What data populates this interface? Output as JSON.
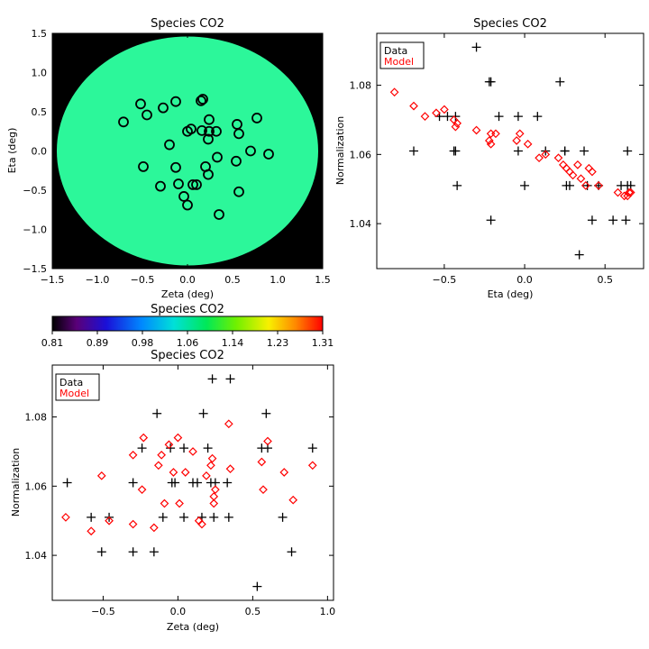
{
  "chart_data": [
    {
      "id": "map",
      "type": "heatmap",
      "title": "Species CO2",
      "xlabel": "Zeta (deg)",
      "ylabel": "Eta (deg)",
      "xlim": [
        -1.5,
        1.5
      ],
      "ylim": [
        -1.5,
        1.5
      ],
      "xticks": [
        -1.5,
        -1.0,
        -0.5,
        0.0,
        0.5,
        1.0,
        1.5
      ],
      "xtick_labels": [
        "−1.5",
        "−1.0",
        "−0.5",
        "0.0",
        "0.5",
        "1.0",
        "1.5"
      ],
      "yticks": [
        -1.5,
        -1.0,
        -0.5,
        0.0,
        0.5,
        1.0,
        1.5
      ],
      "ytick_labels": [
        "−1.5",
        "−1.0",
        "−0.5",
        "0.0",
        "0.5",
        "1.0",
        "1.5"
      ],
      "field_radius_deg": 1.45,
      "field_value": 1.06,
      "background_color": "#000000",
      "points": [
        {
          "x": -0.71,
          "y": 0.37
        },
        {
          "x": -0.52,
          "y": 0.6
        },
        {
          "x": -0.45,
          "y": 0.46
        },
        {
          "x": -0.27,
          "y": 0.55
        },
        {
          "x": -0.13,
          "y": 0.63
        },
        {
          "x": 0.15,
          "y": 0.64
        },
        {
          "x": 0.17,
          "y": 0.66
        },
        {
          "x": 0.24,
          "y": 0.4
        },
        {
          "x": 0.55,
          "y": 0.34
        },
        {
          "x": 0.77,
          "y": 0.42
        },
        {
          "x": 0.04,
          "y": 0.28
        },
        {
          "x": 0.0,
          "y": 0.25
        },
        {
          "x": 0.16,
          "y": 0.26
        },
        {
          "x": 0.24,
          "y": 0.25
        },
        {
          "x": 0.32,
          "y": 0.25
        },
        {
          "x": 0.57,
          "y": 0.22
        },
        {
          "x": -0.2,
          "y": 0.08
        },
        {
          "x": 0.23,
          "y": 0.15
        },
        {
          "x": 0.7,
          "y": 0.0
        },
        {
          "x": 0.9,
          "y": -0.04
        },
        {
          "x": 0.33,
          "y": -0.08
        },
        {
          "x": 0.54,
          "y": -0.13
        },
        {
          "x": -0.49,
          "y": -0.2
        },
        {
          "x": -0.13,
          "y": -0.21
        },
        {
          "x": 0.2,
          "y": -0.2
        },
        {
          "x": 0.23,
          "y": -0.3
        },
        {
          "x": -0.1,
          "y": -0.42
        },
        {
          "x": 0.06,
          "y": -0.43
        },
        {
          "x": 0.1,
          "y": -0.43
        },
        {
          "x": -0.3,
          "y": -0.45
        },
        {
          "x": 0.57,
          "y": -0.52
        },
        {
          "x": -0.04,
          "y": -0.58
        },
        {
          "x": 0.0,
          "y": -0.69
        },
        {
          "x": 0.35,
          "y": -0.81
        }
      ]
    },
    {
      "id": "colorbar",
      "type": "colorbar",
      "title": "Species CO2",
      "range": [
        0.81,
        1.31
      ],
      "tick_labels": [
        "0.81",
        "0.89",
        "0.98",
        "1.06",
        "1.14",
        "1.23",
        "1.31"
      ]
    },
    {
      "id": "eta_plot",
      "type": "scatter",
      "title": "Species CO2",
      "xlabel": "Eta (deg)",
      "ylabel": "Normalization",
      "xlim": [
        -0.92,
        0.74
      ],
      "ylim": [
        1.027,
        1.095
      ],
      "xticks": [
        -0.5,
        0.0,
        0.5
      ],
      "xtick_labels": [
        "−0.5",
        "0.0",
        "0.5"
      ],
      "yticks": [
        1.04,
        1.06,
        1.08
      ],
      "ytick_labels": [
        "1.04",
        "1.06",
        "1.08"
      ],
      "legend_position": "top-left",
      "series": [
        {
          "name": "Data",
          "marker": "plus",
          "color": "#000000",
          "points": [
            {
              "x": -0.8,
              "y": 1.091
            },
            {
              "x": -0.69,
              "y": 1.061
            },
            {
              "x": -0.53,
              "y": 1.071
            },
            {
              "x": -0.48,
              "y": 1.071
            },
            {
              "x": -0.44,
              "y": 1.061
            },
            {
              "x": -0.43,
              "y": 1.061
            },
            {
              "x": -0.43,
              "y": 1.071
            },
            {
              "x": -0.42,
              "y": 1.051
            },
            {
              "x": -0.3,
              "y": 1.091
            },
            {
              "x": -0.22,
              "y": 1.081
            },
            {
              "x": -0.21,
              "y": 1.081
            },
            {
              "x": -0.21,
              "y": 1.041
            },
            {
              "x": -0.16,
              "y": 1.071
            },
            {
              "x": -0.04,
              "y": 1.061
            },
            {
              "x": -0.04,
              "y": 1.071
            },
            {
              "x": 0.0,
              "y": 1.051
            },
            {
              "x": 0.08,
              "y": 1.071
            },
            {
              "x": 0.13,
              "y": 1.061
            },
            {
              "x": 0.22,
              "y": 1.081
            },
            {
              "x": 0.25,
              "y": 1.061
            },
            {
              "x": 0.25,
              "y": 1.061
            },
            {
              "x": 0.26,
              "y": 1.051
            },
            {
              "x": 0.28,
              "y": 1.051
            },
            {
              "x": 0.34,
              "y": 1.031
            },
            {
              "x": 0.37,
              "y": 1.061
            },
            {
              "x": 0.39,
              "y": 1.051
            },
            {
              "x": 0.42,
              "y": 1.041
            },
            {
              "x": 0.46,
              "y": 1.051
            },
            {
              "x": 0.55,
              "y": 1.041
            },
            {
              "x": 0.6,
              "y": 1.051
            },
            {
              "x": 0.63,
              "y": 1.041
            },
            {
              "x": 0.64,
              "y": 1.061
            },
            {
              "x": 0.64,
              "y": 1.051
            },
            {
              "x": 0.66,
              "y": 1.051
            }
          ]
        },
        {
          "name": "Model",
          "marker": "diamond",
          "color": "#ff0000",
          "points": [
            {
              "x": -0.81,
              "y": 1.078
            },
            {
              "x": -0.69,
              "y": 1.074
            },
            {
              "x": -0.62,
              "y": 1.071
            },
            {
              "x": -0.55,
              "y": 1.072
            },
            {
              "x": -0.5,
              "y": 1.073
            },
            {
              "x": -0.44,
              "y": 1.07
            },
            {
              "x": -0.43,
              "y": 1.068
            },
            {
              "x": -0.42,
              "y": 1.069
            },
            {
              "x": -0.3,
              "y": 1.067
            },
            {
              "x": -0.22,
              "y": 1.064
            },
            {
              "x": -0.21,
              "y": 1.066
            },
            {
              "x": -0.21,
              "y": 1.063
            },
            {
              "x": -0.18,
              "y": 1.066
            },
            {
              "x": -0.05,
              "y": 1.064
            },
            {
              "x": -0.03,
              "y": 1.066
            },
            {
              "x": 0.02,
              "y": 1.063
            },
            {
              "x": 0.09,
              "y": 1.059
            },
            {
              "x": 0.13,
              "y": 1.06
            },
            {
              "x": 0.21,
              "y": 1.059
            },
            {
              "x": 0.24,
              "y": 1.057
            },
            {
              "x": 0.26,
              "y": 1.056
            },
            {
              "x": 0.28,
              "y": 1.055
            },
            {
              "x": 0.3,
              "y": 1.054
            },
            {
              "x": 0.33,
              "y": 1.057
            },
            {
              "x": 0.35,
              "y": 1.053
            },
            {
              "x": 0.38,
              "y": 1.051
            },
            {
              "x": 0.4,
              "y": 1.056
            },
            {
              "x": 0.42,
              "y": 1.055
            },
            {
              "x": 0.46,
              "y": 1.051
            },
            {
              "x": 0.58,
              "y": 1.049
            },
            {
              "x": 0.62,
              "y": 1.048
            },
            {
              "x": 0.64,
              "y": 1.048
            },
            {
              "x": 0.65,
              "y": 1.049
            },
            {
              "x": 0.66,
              "y": 1.049
            }
          ]
        }
      ]
    },
    {
      "id": "zeta_plot",
      "type": "scatter",
      "title": "Species CO2",
      "xlabel": "Zeta (deg)",
      "ylabel": "Normalization",
      "xlim": [
        -0.84,
        1.04
      ],
      "ylim": [
        1.027,
        1.095
      ],
      "xticks": [
        -0.5,
        0.0,
        0.5,
        1.0
      ],
      "xtick_labels": [
        "−0.5",
        "0.0",
        "0.5",
        "1.0"
      ],
      "yticks": [
        1.04,
        1.06,
        1.08
      ],
      "ytick_labels": [
        "1.04",
        "1.06",
        "1.08"
      ],
      "legend_position": "top-left",
      "series": [
        {
          "name": "Data",
          "marker": "plus",
          "color": "#000000",
          "points": [
            {
              "x": -0.74,
              "y": 1.061
            },
            {
              "x": -0.58,
              "y": 1.051
            },
            {
              "x": -0.51,
              "y": 1.041
            },
            {
              "x": -0.46,
              "y": 1.051
            },
            {
              "x": -0.3,
              "y": 1.061
            },
            {
              "x": -0.3,
              "y": 1.041
            },
            {
              "x": -0.24,
              "y": 1.071
            },
            {
              "x": -0.16,
              "y": 1.041
            },
            {
              "x": -0.14,
              "y": 1.081
            },
            {
              "x": -0.1,
              "y": 1.051
            },
            {
              "x": -0.05,
              "y": 1.071
            },
            {
              "x": -0.04,
              "y": 1.061
            },
            {
              "x": -0.02,
              "y": 1.061
            },
            {
              "x": 0.04,
              "y": 1.071
            },
            {
              "x": 0.04,
              "y": 1.051
            },
            {
              "x": 0.1,
              "y": 1.061
            },
            {
              "x": 0.13,
              "y": 1.061
            },
            {
              "x": 0.16,
              "y": 1.051
            },
            {
              "x": 0.17,
              "y": 1.081
            },
            {
              "x": 0.2,
              "y": 1.071
            },
            {
              "x": 0.22,
              "y": 1.061
            },
            {
              "x": 0.23,
              "y": 1.091
            },
            {
              "x": 0.25,
              "y": 1.061
            },
            {
              "x": 0.24,
              "y": 1.051
            },
            {
              "x": 0.33,
              "y": 1.061
            },
            {
              "x": 0.34,
              "y": 1.051
            },
            {
              "x": 0.35,
              "y": 1.091
            },
            {
              "x": 0.53,
              "y": 1.031
            },
            {
              "x": 0.56,
              "y": 1.071
            },
            {
              "x": 0.59,
              "y": 1.081
            },
            {
              "x": 0.6,
              "y": 1.071
            },
            {
              "x": 0.7,
              "y": 1.051
            },
            {
              "x": 0.76,
              "y": 1.041
            },
            {
              "x": 0.9,
              "y": 1.071
            }
          ]
        },
        {
          "name": "Model",
          "marker": "diamond",
          "color": "#ff0000",
          "points": [
            {
              "x": -0.75,
              "y": 1.051
            },
            {
              "x": -0.58,
              "y": 1.047
            },
            {
              "x": -0.51,
              "y": 1.063
            },
            {
              "x": -0.46,
              "y": 1.05
            },
            {
              "x": -0.3,
              "y": 1.069
            },
            {
              "x": -0.3,
              "y": 1.049
            },
            {
              "x": -0.24,
              "y": 1.059
            },
            {
              "x": -0.23,
              "y": 1.074
            },
            {
              "x": -0.16,
              "y": 1.048
            },
            {
              "x": -0.13,
              "y": 1.066
            },
            {
              "x": -0.11,
              "y": 1.069
            },
            {
              "x": -0.09,
              "y": 1.055
            },
            {
              "x": -0.06,
              "y": 1.072
            },
            {
              "x": -0.03,
              "y": 1.064
            },
            {
              "x": 0.0,
              "y": 1.074
            },
            {
              "x": 0.01,
              "y": 1.055
            },
            {
              "x": 0.05,
              "y": 1.064
            },
            {
              "x": 0.1,
              "y": 1.07
            },
            {
              "x": 0.14,
              "y": 1.05
            },
            {
              "x": 0.16,
              "y": 1.049
            },
            {
              "x": 0.19,
              "y": 1.063
            },
            {
              "x": 0.22,
              "y": 1.066
            },
            {
              "x": 0.23,
              "y": 1.068
            },
            {
              "x": 0.24,
              "y": 1.057
            },
            {
              "x": 0.24,
              "y": 1.055
            },
            {
              "x": 0.25,
              "y": 1.059
            },
            {
              "x": 0.34,
              "y": 1.078
            },
            {
              "x": 0.35,
              "y": 1.065
            },
            {
              "x": 0.56,
              "y": 1.067
            },
            {
              "x": 0.57,
              "y": 1.059
            },
            {
              "x": 0.6,
              "y": 1.073
            },
            {
              "x": 0.71,
              "y": 1.064
            },
            {
              "x": 0.77,
              "y": 1.056
            },
            {
              "x": 0.9,
              "y": 1.066
            }
          ]
        }
      ]
    }
  ]
}
